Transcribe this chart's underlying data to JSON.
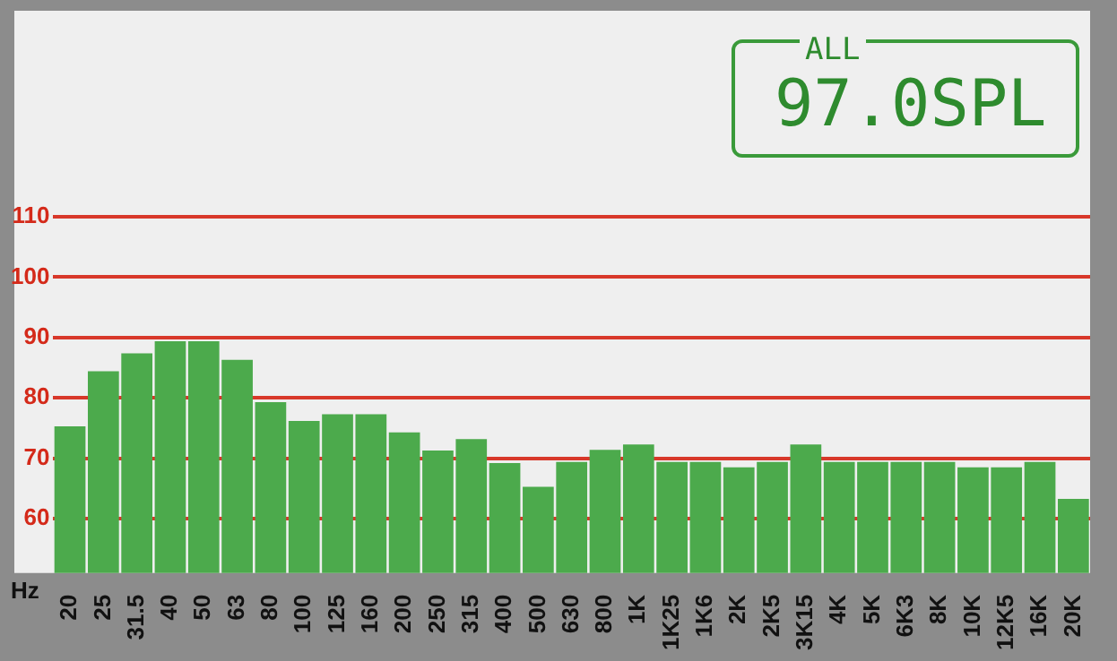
{
  "chart_data": {
    "type": "bar",
    "xlabel": "Hz",
    "categories": [
      "20",
      "25",
      "31.5",
      "40",
      "50",
      "63",
      "80",
      "100",
      "125",
      "160",
      "200",
      "250",
      "315",
      "400",
      "500",
      "630",
      "800",
      "1K",
      "1K25",
      "1K6",
      "2K",
      "2K5",
      "3K15",
      "4K",
      "5K",
      "6K3",
      "8K",
      "10K",
      "12K5",
      "16K",
      "20K"
    ],
    "values": [
      75.3,
      84.4,
      87.4,
      89.4,
      89.4,
      86.3,
      79.3,
      76.2,
      77.3,
      77.3,
      74.3,
      71.3,
      73.2,
      69.2,
      65.3,
      69.4,
      71.4,
      72.3,
      69.4,
      69.4,
      68.5,
      69.4,
      72.3,
      69.4,
      69.4,
      69.4,
      69.4,
      68.5,
      68.5,
      69.4,
      63.3
    ],
    "color": "#4caa4c",
    "ylim": [
      51,
      110
    ],
    "yticks": [
      60,
      70,
      80,
      90,
      100,
      110
    ],
    "grid": "y",
    "legend": false,
    "annotations": [
      "ALL",
      "97.0SPL"
    ]
  }
}
